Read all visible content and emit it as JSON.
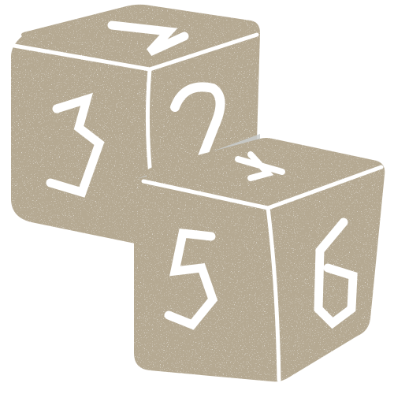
{
  "colors": {
    "dice_fill": "#b5a992",
    "line": "#ffffff",
    "overlap_tint": "#c9cccd",
    "background": "#ffffff"
  },
  "back_die": {
    "top_face_number": "1",
    "left_face_number": "3",
    "right_face_number": "2"
  },
  "front_die": {
    "top_face_number": "4",
    "left_face_number": "5",
    "right_face_number": "6"
  }
}
